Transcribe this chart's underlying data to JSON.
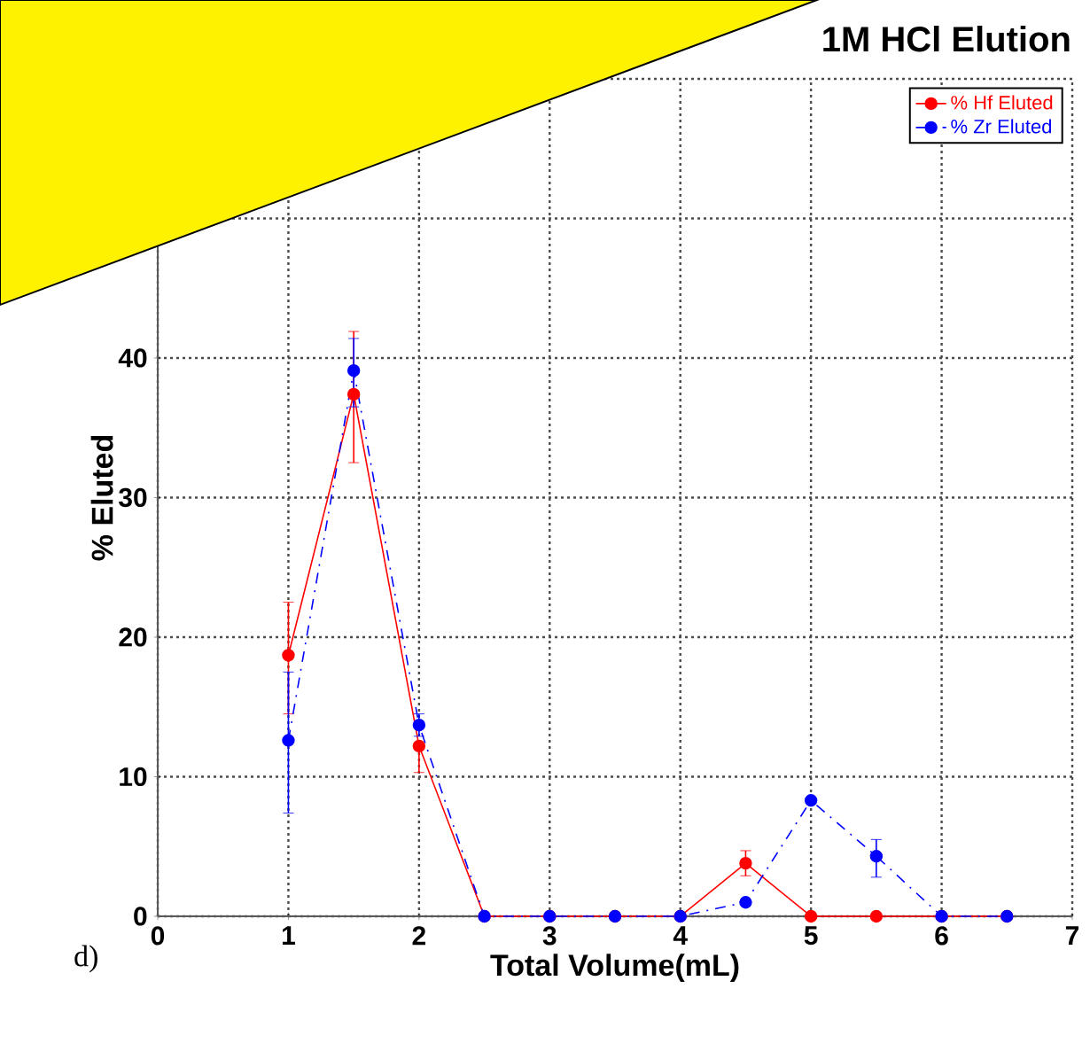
{
  "chart_data": {
    "type": "line",
    "title": "1M HCl Elution",
    "xlabel": "Total Volume(mL)",
    "ylabel": "% Eluted",
    "annotations": [
      "d)"
    ],
    "xlim": [
      0,
      7
    ],
    "xticks": [
      0,
      1,
      2,
      3,
      4,
      5,
      6,
      7
    ],
    "ylim": [
      0,
      60
    ],
    "yticks": [
      0,
      10,
      20,
      30,
      40,
      {
        "value": 50,
        "label": null
      },
      {
        "value": 60,
        "label": null
      }
    ],
    "grid": true,
    "legend": "top right",
    "marker": "circle",
    "series": [
      {
        "name": "% Hf Eluted",
        "color": "#ff0000",
        "line_style": "solid",
        "x": [
          1,
          1.5,
          2,
          2.5,
          3,
          3.5,
          4,
          4.5,
          5,
          5.5,
          6,
          6.5
        ],
        "values": [
          18.7,
          37.4,
          12.2,
          0,
          0,
          0,
          0,
          3.8,
          0,
          0,
          0,
          0
        ],
        "errors": [
          [
            14.5,
            22.5
          ],
          [
            32.5,
            41.9
          ],
          [
            10.3,
            12.2
          ],
          null,
          null,
          null,
          null,
          [
            2.9,
            4.7
          ],
          null,
          null,
          null,
          null
        ]
      },
      {
        "name": "% Zr Eluted",
        "color": "#0000ff",
        "line_style": "dashed",
        "x": [
          1,
          1.5,
          2,
          2.5,
          3,
          3.5,
          4,
          4.5,
          5,
          5.5,
          6,
          6.5
        ],
        "values": [
          12.6,
          39.1,
          13.7,
          0,
          0,
          0,
          0,
          1.0,
          8.3,
          4.3,
          0,
          0
        ],
        "errors": [
          [
            7.4,
            17.5
          ],
          [
            36.5,
            41.4
          ],
          [
            12.9,
            14.5
          ],
          null,
          null,
          null,
          null,
          null,
          null,
          [
            2.8,
            5.5
          ],
          null,
          null
        ]
      }
    ]
  }
}
